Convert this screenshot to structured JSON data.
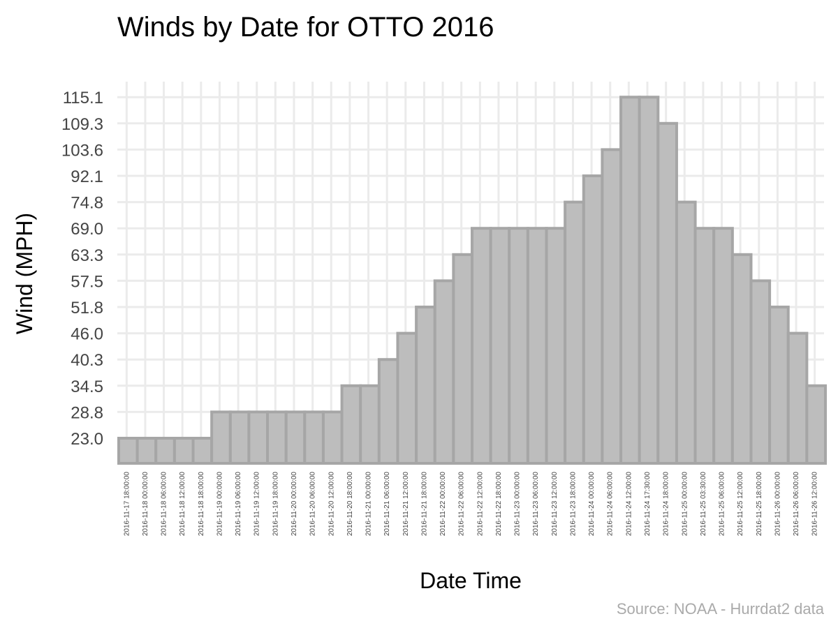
{
  "chart_data": {
    "type": "bar",
    "title": "Winds by Date for OTTO 2016",
    "xlabel": "Date Time",
    "ylabel": "Wind (MPH)",
    "caption": "Source: NOAA - Hurrdat2 data",
    "yticks": [
      "23.0",
      "28.8",
      "34.5",
      "40.3",
      "46.0",
      "51.8",
      "57.5",
      "63.3",
      "69.0",
      "74.8",
      "92.1",
      "103.6",
      "109.3",
      "115.1"
    ],
    "ylim": [
      0,
      121
    ],
    "grid": true,
    "legend": "none",
    "colors": {
      "bar_fill": "#bdbdbd",
      "bar_outline": "#a6a6a6",
      "grid": "#ebebeb"
    },
    "categories": [
      "2016-11-17 18:00:00",
      "2016-11-18 00:00:00",
      "2016-11-18 06:00:00",
      "2016-11-18 12:00:00",
      "2016-11-18 18:00:00",
      "2016-11-19 00:00:00",
      "2016-11-19 06:00:00",
      "2016-11-19 12:00:00",
      "2016-11-19 18:00:00",
      "2016-11-20 00:00:00",
      "2016-11-20 06:00:00",
      "2016-11-20 12:00:00",
      "2016-11-20 18:00:00",
      "2016-11-21 00:00:00",
      "2016-11-21 06:00:00",
      "2016-11-21 12:00:00",
      "2016-11-21 18:00:00",
      "2016-11-22 00:00:00",
      "2016-11-22 06:00:00",
      "2016-11-22 12:00:00",
      "2016-11-22 18:00:00",
      "2016-11-23 00:00:00",
      "2016-11-23 06:00:00",
      "2016-11-23 12:00:00",
      "2016-11-23 18:00:00",
      "2016-11-24 00:00:00",
      "2016-11-24 06:00:00",
      "2016-11-24 12:00:00",
      "2016-11-24 17:30:00",
      "2016-11-24 18:00:00",
      "2016-11-25 00:00:00",
      "2016-11-25 03:30:00",
      "2016-11-25 06:00:00",
      "2016-11-25 12:00:00",
      "2016-11-25 18:00:00",
      "2016-11-26 00:00:00",
      "2016-11-26 06:00:00",
      "2016-11-26 12:00:00"
    ],
    "values": [
      23.0,
      23.0,
      23.0,
      23.0,
      23.0,
      28.8,
      28.8,
      28.8,
      28.8,
      28.8,
      28.8,
      28.8,
      34.5,
      34.5,
      40.3,
      46.0,
      51.8,
      57.5,
      63.3,
      69.0,
      69.0,
      69.0,
      69.0,
      69.0,
      74.8,
      92.1,
      103.6,
      115.1,
      115.1,
      109.3,
      74.8,
      69.0,
      69.0,
      63.3,
      57.5,
      51.8,
      46.0,
      34.5
    ]
  }
}
